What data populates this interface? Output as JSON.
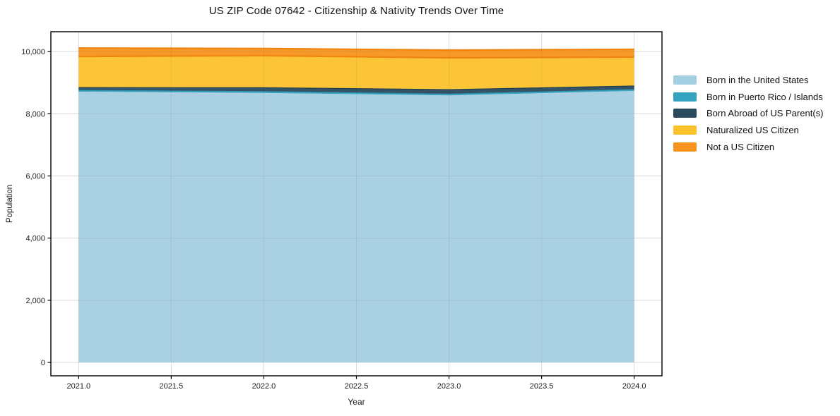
{
  "title": "US ZIP Code 07642 - Citizenship & Nativity Trends Over Time",
  "chart_data": {
    "type": "area",
    "stacked": true,
    "title": "US ZIP Code 07642 - Citizenship & Nativity Trends Over Time",
    "xlabel": "Year",
    "ylabel": "Population",
    "x": [
      2021,
      2022,
      2023,
      2024
    ],
    "series": [
      {
        "name": "Born in the United States",
        "color": "#a4cee2",
        "edge": null,
        "values": [
          8710,
          8670,
          8590,
          8735
        ]
      },
      {
        "name": "Born in Puerto Rico / Islands",
        "color": "#35a2c0",
        "edge": "#2d93b0",
        "values": [
          45,
          45,
          45,
          45
        ]
      },
      {
        "name": "Born Abroad of US Parent(s)",
        "color": "#2a4a5e",
        "edge": "#1f3e4e",
        "values": [
          90,
          125,
          145,
          115
        ]
      },
      {
        "name": "Naturalized US Citizen",
        "color": "#fcc22d",
        "edge": "#ef8410",
        "values": [
          1000,
          1030,
          1020,
          930
        ]
      },
      {
        "name": "Not a US Citizen",
        "color": "#f7941e",
        "edge": "#ef8410",
        "values": [
          270,
          230,
          250,
          250
        ]
      }
    ],
    "x_ticks": [
      2021.0,
      2021.5,
      2022.0,
      2022.5,
      2023.0,
      2023.5,
      2024.0
    ],
    "x_tick_labels": [
      "2021.0",
      "2021.5",
      "2022.0",
      "2022.5",
      "2023.0",
      "2023.5",
      "2024.0"
    ],
    "y_ticks": [
      0,
      2000,
      4000,
      6000,
      8000,
      10000
    ],
    "y_tick_labels": [
      "0",
      "2,000",
      "4,000",
      "6,000",
      "8,000",
      "10,000"
    ],
    "xlim": [
      2020.85,
      2024.15
    ],
    "ylim": [
      -430,
      10640
    ],
    "grid": true,
    "legend_position": "right",
    "colors": {
      "grid": "#e7e7e7",
      "spine": "#000000",
      "background": "#ffffff"
    }
  }
}
